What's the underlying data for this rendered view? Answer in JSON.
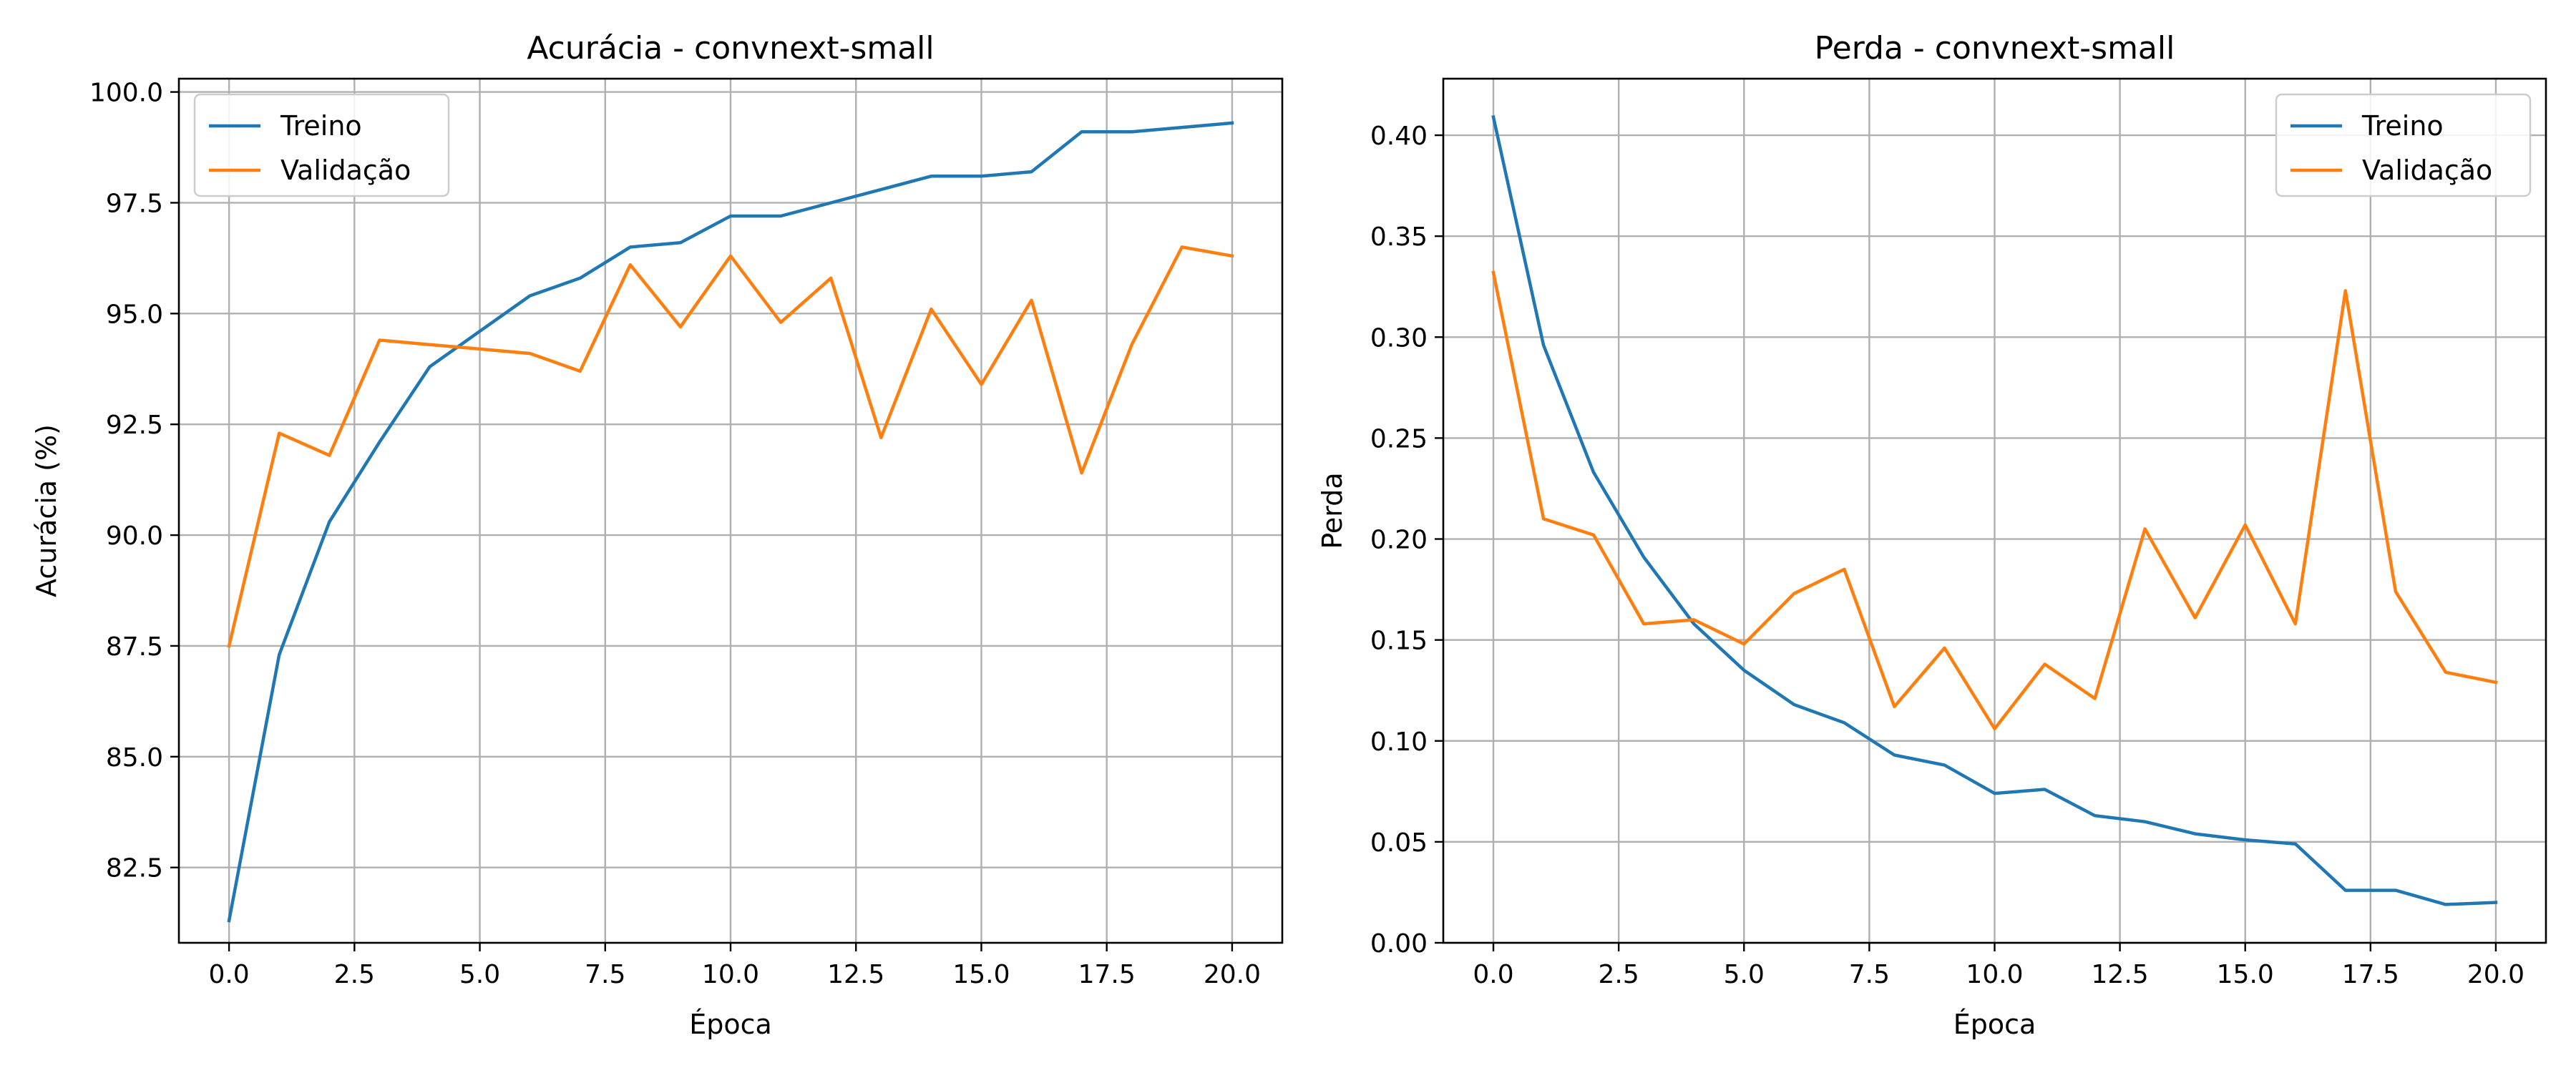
{
  "chart_data": [
    {
      "type": "line",
      "title": "Acurácia - convnext-small",
      "xlabel": "Época",
      "ylabel": "Acurácia (%)",
      "xlim": [
        -1,
        21
      ],
      "ylim": [
        80.8,
        100.3
      ],
      "xticks": [
        0.0,
        2.5,
        5.0,
        7.5,
        10.0,
        12.5,
        15.0,
        17.5,
        20.0
      ],
      "xtick_labels": [
        "0.0",
        "2.5",
        "5.0",
        "7.5",
        "10.0",
        "12.5",
        "15.0",
        "17.5",
        "20.0"
      ],
      "yticks": [
        82.5,
        85.0,
        87.5,
        90.0,
        92.5,
        95.0,
        97.5,
        100.0
      ],
      "ytick_labels": [
        "82.5",
        "85.0",
        "87.5",
        "90.0",
        "92.5",
        "95.0",
        "97.5",
        "100.0"
      ],
      "grid": true,
      "legend": "top-left",
      "x": [
        0,
        1,
        2,
        3,
        4,
        5,
        6,
        7,
        8,
        9,
        10,
        11,
        12,
        13,
        14,
        15,
        16,
        17,
        18,
        19,
        20
      ],
      "series": [
        {
          "name": "Treino",
          "color": "#1f77b4",
          "values": [
            81.3,
            87.3,
            90.3,
            92.1,
            93.8,
            94.6,
            95.4,
            95.8,
            96.5,
            96.6,
            97.2,
            97.2,
            97.5,
            97.8,
            98.1,
            98.1,
            98.2,
            99.1,
            99.1,
            99.2,
            99.3
          ]
        },
        {
          "name": "Validação",
          "color": "#ff7f0e",
          "values": [
            87.5,
            92.3,
            91.8,
            94.4,
            94.3,
            94.2,
            94.1,
            93.7,
            96.1,
            94.7,
            96.3,
            94.8,
            95.8,
            92.2,
            95.1,
            93.4,
            95.3,
            91.4,
            94.3,
            96.5,
            96.3
          ]
        }
      ]
    },
    {
      "type": "line",
      "title": "Perda - convnext-small",
      "xlabel": "Época",
      "ylabel": "Perda",
      "xlim": [
        -1,
        21
      ],
      "ylim": [
        0,
        0.428
      ],
      "xticks": [
        0.0,
        2.5,
        5.0,
        7.5,
        10.0,
        12.5,
        15.0,
        17.5,
        20.0
      ],
      "xtick_labels": [
        "0.0",
        "2.5",
        "5.0",
        "7.5",
        "10.0",
        "12.5",
        "15.0",
        "17.5",
        "20.0"
      ],
      "yticks": [
        0.0,
        0.05,
        0.1,
        0.15,
        0.2,
        0.25,
        0.3,
        0.35,
        0.4
      ],
      "ytick_labels": [
        "0.00",
        "0.05",
        "0.10",
        "0.15",
        "0.20",
        "0.25",
        "0.30",
        "0.35",
        "0.40"
      ],
      "grid": true,
      "legend": "top-right",
      "x": [
        0,
        1,
        2,
        3,
        4,
        5,
        6,
        7,
        8,
        9,
        10,
        11,
        12,
        13,
        14,
        15,
        16,
        17,
        18,
        19,
        20
      ],
      "series": [
        {
          "name": "Treino",
          "color": "#1f77b4",
          "values": [
            0.409,
            0.296,
            0.233,
            0.191,
            0.158,
            0.135,
            0.118,
            0.109,
            0.093,
            0.088,
            0.074,
            0.076,
            0.063,
            0.06,
            0.054,
            0.051,
            0.049,
            0.026,
            0.026,
            0.019,
            0.02
          ]
        },
        {
          "name": "Validação",
          "color": "#ff7f0e",
          "values": [
            0.332,
            0.21,
            0.202,
            0.158,
            0.16,
            0.148,
            0.173,
            0.185,
            0.117,
            0.146,
            0.106,
            0.138,
            0.121,
            0.205,
            0.161,
            0.207,
            0.158,
            0.323,
            0.174,
            0.134,
            0.129
          ]
        }
      ]
    }
  ]
}
